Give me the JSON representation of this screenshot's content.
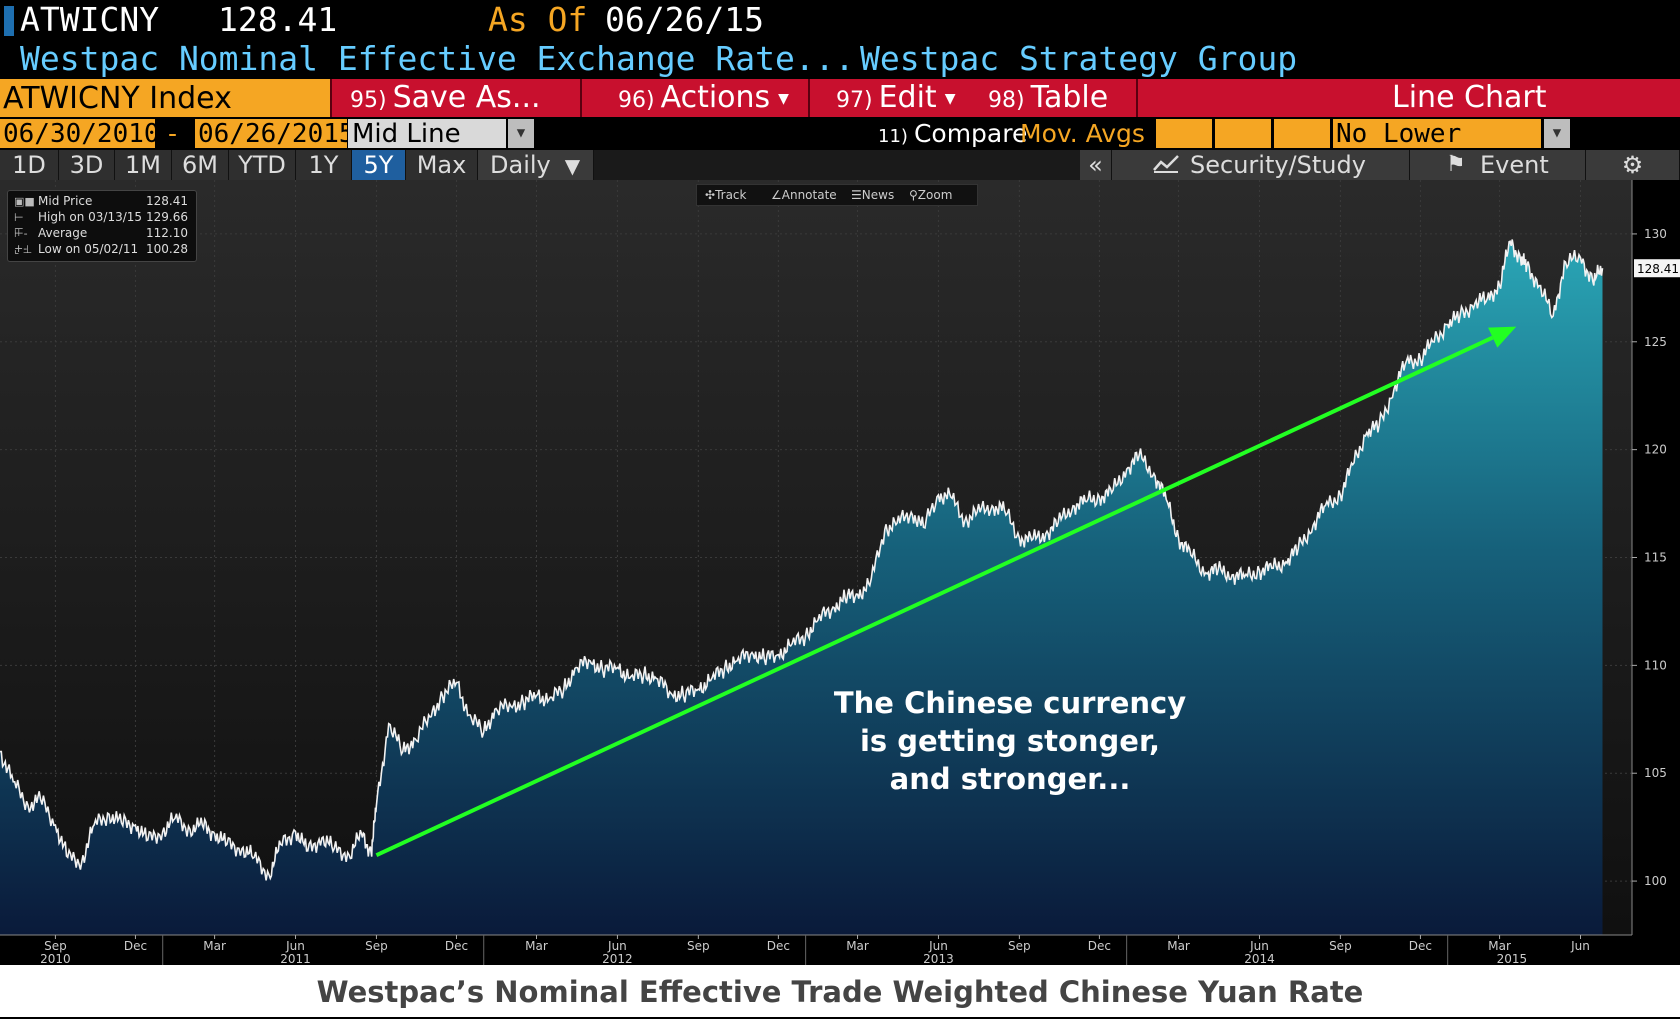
{
  "header": {
    "ticker": "ATWICNY",
    "price": "128.41",
    "as_of_label": "As Of",
    "as_of_date": "06/26/15",
    "description": "Westpac Nominal Effective Exchange Rate...",
    "source": "Westpac Strategy Group"
  },
  "menu": {
    "security": "ATWICNY Index",
    "save_num": "95)",
    "save_label": "Save As...",
    "actions_num": "96)",
    "actions_label": "Actions",
    "edit_num": "97)",
    "edit_label": "Edit",
    "table_num": "98)",
    "table_label": "Table",
    "chart_type": "Line Chart"
  },
  "range": {
    "start": "06/30/2010",
    "dash": "-",
    "end": "06/26/2015",
    "field": "Mid Line",
    "compare_num": "11)",
    "compare_label": "Compare",
    "mov_avgs": "Mov. Avgs",
    "lower_chart": "No Lower Chart"
  },
  "periods": [
    "1D",
    "3D",
    "1M",
    "6M",
    "YTD",
    "1Y",
    "5Y",
    "Max"
  ],
  "active_period": "5Y",
  "frequency": "Daily",
  "toolbar": {
    "collapse": "«",
    "security_study": "Security/Study",
    "event": "Event"
  },
  "legend": {
    "mid_label": "Mid Price",
    "mid_value": "128.41",
    "high_label": "High on 03/13/15",
    "high_value": "129.66",
    "avg_label": "Average",
    "avg_value": "112.10",
    "low_label": "Low on 05/02/11",
    "low_value": "100.28"
  },
  "chart_tools": {
    "track": "Track",
    "annotate": "Annotate",
    "news": "News",
    "zoom": "Zoom"
  },
  "annotation": {
    "line1": "The Chinese currency",
    "line2": "is getting stonger,",
    "line3": "and stronger..."
  },
  "caption": "Westpac’s Nominal Effective Trade Weighted Chinese Yuan Rate",
  "colors": {
    "accent_orange": "#f5a623",
    "menu_red": "#c8102e",
    "header_cyan": "#66ccff",
    "trend_green": "#22ff22",
    "area_top": "#2aa6b6",
    "area_bottom": "#0a1a3a"
  },
  "chart_data": {
    "type": "area",
    "series_name": "Mid Price",
    "last_value": 128.41,
    "ylim": [
      97.5,
      132.5
    ],
    "yticks": [
      100,
      105,
      110,
      115,
      120,
      125,
      130
    ],
    "x": [
      "2010-06-30",
      "2010-07-15",
      "2010-08-01",
      "2010-08-15",
      "2010-09-01",
      "2010-09-15",
      "2010-10-01",
      "2010-10-15",
      "2010-11-01",
      "2010-11-15",
      "2010-12-01",
      "2010-12-15",
      "2011-01-01",
      "2011-01-15",
      "2011-02-01",
      "2011-02-15",
      "2011-03-01",
      "2011-03-15",
      "2011-04-01",
      "2011-04-15",
      "2011-05-02",
      "2011-05-15",
      "2011-06-01",
      "2011-06-15",
      "2011-07-01",
      "2011-07-15",
      "2011-08-01",
      "2011-08-15",
      "2011-08-26",
      "2011-09-01",
      "2011-09-15",
      "2011-10-01",
      "2011-10-15",
      "2011-11-01",
      "2011-11-15",
      "2011-12-01",
      "2011-12-15",
      "2012-01-01",
      "2012-01-15",
      "2012-02-01",
      "2012-02-15",
      "2012-03-01",
      "2012-03-15",
      "2012-04-01",
      "2012-04-15",
      "2012-05-01",
      "2012-05-15",
      "2012-06-01",
      "2012-06-15",
      "2012-07-01",
      "2012-07-15",
      "2012-08-01",
      "2012-08-15",
      "2012-09-01",
      "2012-09-15",
      "2012-10-01",
      "2012-10-15",
      "2012-11-01",
      "2012-11-15",
      "2012-12-01",
      "2012-12-15",
      "2013-01-01",
      "2013-01-15",
      "2013-02-01",
      "2013-02-15",
      "2013-03-01",
      "2013-03-15",
      "2013-04-01",
      "2013-04-15",
      "2013-05-01",
      "2013-05-15",
      "2013-06-01",
      "2013-06-15",
      "2013-07-01",
      "2013-07-15",
      "2013-08-01",
      "2013-08-15",
      "2013-09-01",
      "2013-09-15",
      "2013-10-01",
      "2013-10-15",
      "2013-11-01",
      "2013-11-15",
      "2013-12-01",
      "2013-12-15",
      "2014-01-01",
      "2014-01-15",
      "2014-02-01",
      "2014-02-15",
      "2014-03-01",
      "2014-03-15",
      "2014-04-01",
      "2014-04-15",
      "2014-05-01",
      "2014-05-15",
      "2014-06-01",
      "2014-06-15",
      "2014-07-01",
      "2014-07-15",
      "2014-08-01",
      "2014-08-15",
      "2014-09-01",
      "2014-09-15",
      "2014-10-01",
      "2014-10-15",
      "2014-11-01",
      "2014-11-15",
      "2014-12-01",
      "2014-12-15",
      "2015-01-01",
      "2015-01-15",
      "2015-02-01",
      "2015-02-15",
      "2015-03-01",
      "2015-03-13",
      "2015-03-25",
      "2015-04-01",
      "2015-04-15",
      "2015-05-01",
      "2015-05-15",
      "2015-06-01",
      "2015-06-15",
      "2015-06-26"
    ],
    "y": [
      106.0,
      104.6,
      103.5,
      103.8,
      102.6,
      101.1,
      100.9,
      102.6,
      103.1,
      102.7,
      102.6,
      101.9,
      102.3,
      102.9,
      102.4,
      102.6,
      102.2,
      101.7,
      101.5,
      101.1,
      100.28,
      101.7,
      102.3,
      101.4,
      102.0,
      101.5,
      101.2,
      102.2,
      101.3,
      103.5,
      107.3,
      106.0,
      106.6,
      107.6,
      108.6,
      109.2,
      107.7,
      106.9,
      108.0,
      108.1,
      108.3,
      108.6,
      108.4,
      108.9,
      109.9,
      110.2,
      109.8,
      109.9,
      109.4,
      109.6,
      109.4,
      108.7,
      108.6,
      108.9,
      109.3,
      109.9,
      110.2,
      110.6,
      110.3,
      110.5,
      110.9,
      111.4,
      112.1,
      112.7,
      113.1,
      113.3,
      113.7,
      116.3,
      116.6,
      117.1,
      116.4,
      117.9,
      117.8,
      116.7,
      117.1,
      117.4,
      117.2,
      115.9,
      115.8,
      116.1,
      116.6,
      117.4,
      117.6,
      117.8,
      118.0,
      119.1,
      119.7,
      118.9,
      117.7,
      115.9,
      115.1,
      114.3,
      114.4,
      114.2,
      114.1,
      114.4,
      114.5,
      114.8,
      115.4,
      116.5,
      117.4,
      117.9,
      119.3,
      120.8,
      121.1,
      122.8,
      124.1,
      124.2,
      125.0,
      125.8,
      126.2,
      126.8,
      127.0,
      127.6,
      129.66,
      128.8,
      128.5,
      127.6,
      126.2,
      128.7,
      128.9,
      127.8,
      128.41
    ],
    "xlabels": [
      {
        "date": "2010-09-01",
        "label": "Sep"
      },
      {
        "date": "2010-12-01",
        "label": "Dec"
      },
      {
        "date": "2011-03-01",
        "label": "Mar"
      },
      {
        "date": "2011-06-01",
        "label": "Jun"
      },
      {
        "date": "2011-09-01",
        "label": "Sep"
      },
      {
        "date": "2011-12-01",
        "label": "Dec"
      },
      {
        "date": "2012-03-01",
        "label": "Mar"
      },
      {
        "date": "2012-06-01",
        "label": "Jun"
      },
      {
        "date": "2012-09-01",
        "label": "Sep"
      },
      {
        "date": "2012-12-01",
        "label": "Dec"
      },
      {
        "date": "2013-03-01",
        "label": "Mar"
      },
      {
        "date": "2013-06-01",
        "label": "Jun"
      },
      {
        "date": "2013-09-01",
        "label": "Sep"
      },
      {
        "date": "2013-12-01",
        "label": "Dec"
      },
      {
        "date": "2014-03-01",
        "label": "Mar"
      },
      {
        "date": "2014-06-01",
        "label": "Jun"
      },
      {
        "date": "2014-09-01",
        "label": "Sep"
      },
      {
        "date": "2014-12-01",
        "label": "Dec"
      },
      {
        "date": "2015-03-01",
        "label": "Mar"
      },
      {
        "date": "2015-06-01",
        "label": "Jun"
      }
    ],
    "year_labels": [
      {
        "date": "2010-09-01",
        "label": "2010"
      },
      {
        "date": "2011-06-01",
        "label": "2011"
      },
      {
        "date": "2012-06-01",
        "label": "2012"
      },
      {
        "date": "2013-06-01",
        "label": "2013"
      },
      {
        "date": "2014-06-01",
        "label": "2014"
      },
      {
        "date": "2015-03-15",
        "label": "2015"
      }
    ],
    "trendline": {
      "start": {
        "x": "2011-09-01",
        "y": 101.2
      },
      "end": {
        "x": "2015-03-20",
        "y": 125.7
      }
    }
  }
}
